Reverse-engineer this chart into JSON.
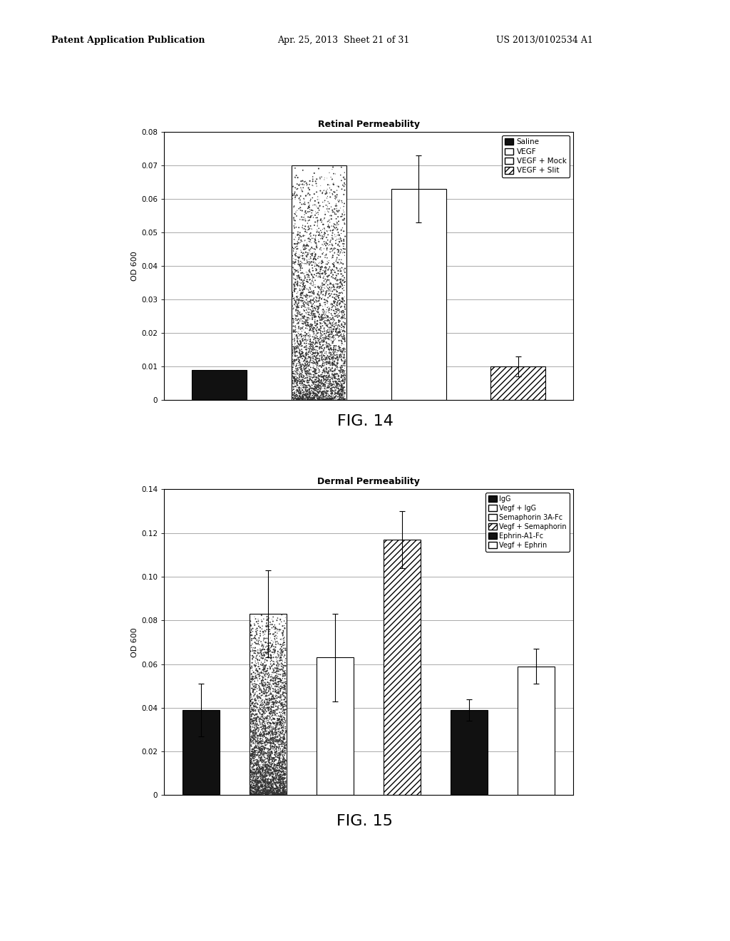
{
  "fig14": {
    "title": "Retinal Permeability",
    "ylabel": "OD 600",
    "ylim": [
      0,
      0.08
    ],
    "yticks": [
      0,
      0.01,
      0.02,
      0.03,
      0.04,
      0.05,
      0.06,
      0.07,
      0.08
    ],
    "ytick_labels": [
      "0",
      "0.01",
      "0.02",
      "0.03",
      "0.04",
      "0.05",
      "0.06",
      "0.07",
      "0.08"
    ],
    "values": [
      0.009,
      0.07,
      0.063,
      0.01
    ],
    "errors": [
      0.0,
      0.0,
      0.01,
      0.003
    ],
    "legend": [
      "Saline",
      "VEGF",
      "VEGF + Mock",
      "VEGF + Slit"
    ]
  },
  "fig15": {
    "title": "Dermal Permeability",
    "ylabel": "OD 600",
    "ylim": [
      0,
      0.14
    ],
    "yticks": [
      0,
      0.02,
      0.04,
      0.06,
      0.08,
      0.1,
      0.12,
      0.14
    ],
    "ytick_labels": [
      "0",
      "0.02",
      "0.04",
      "0.06",
      "0.08",
      "0.10",
      "0.12",
      "0.14"
    ],
    "values": [
      0.039,
      0.083,
      0.063,
      0.117,
      0.039,
      0.059
    ],
    "errors": [
      0.012,
      0.02,
      0.02,
      0.013,
      0.005,
      0.008
    ],
    "legend": [
      "IgG",
      "Vegf + IgG",
      "Semaphorin 3A-Fc",
      "Vegf + Semaphorin",
      "Ephrin-A1-Fc",
      "Vegf + Ephrin"
    ]
  },
  "header_left": "Patent Application Publication",
  "header_mid": "Apr. 25, 2013  Sheet 21 of 31",
  "header_right": "US 2013/0102534 A1",
  "fig14_caption": "FIG. 14",
  "fig15_caption": "FIG. 15",
  "bg_color": "#ffffff",
  "bar_width": 0.55,
  "font_color": "#000000",
  "grid_color": "#888888",
  "speckle_seed": 42
}
